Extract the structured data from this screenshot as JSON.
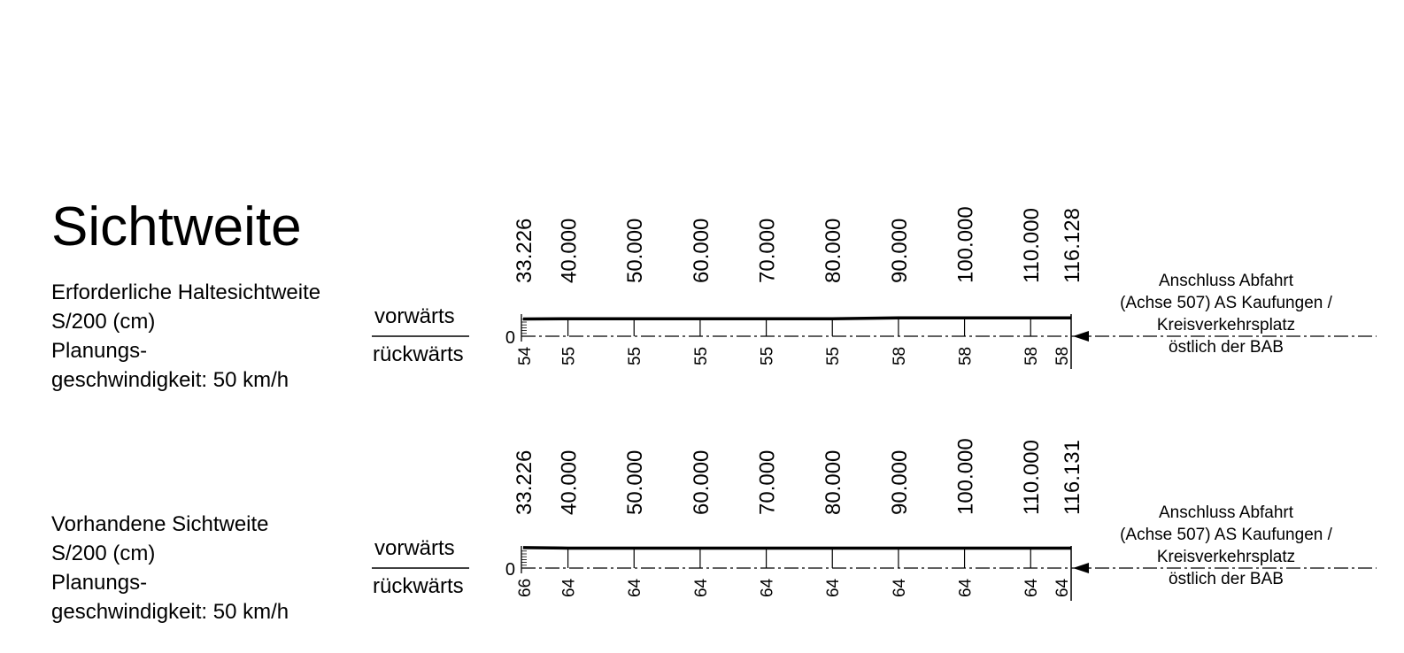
{
  "title": "Sichtweite",
  "blocks": [
    {
      "desc_lines": [
        "Erforderliche Haltesichtweite",
        "S/200 (cm)",
        "Planungs-",
        "geschwindigkeit: 50 km/h"
      ],
      "forward_label": "vorwärts",
      "backward_label": "rückwärts",
      "zero_label": "0",
      "stations": [
        "33.226",
        "40.000",
        "50.000",
        "60.000",
        "70.000",
        "80.000",
        "90.000",
        "100.000",
        "110.000",
        "116.128"
      ],
      "station_km": [
        33.226,
        40.0,
        50.0,
        60.0,
        70.0,
        80.0,
        90.0,
        100.0,
        110.0,
        116.128
      ],
      "forward_values": [
        54,
        55,
        55,
        55,
        55,
        55,
        58,
        58,
        58,
        58
      ],
      "backward_values": [
        "54",
        "55",
        "55",
        "55",
        "55",
        "55",
        "58",
        "58",
        "58",
        "58"
      ],
      "note_lines": [
        "Anschluss Abfahrt",
        "(Achse 507) AS Kaufungen /",
        "Kreisverkehrsplatz",
        "östlich der BAB"
      ]
    },
    {
      "desc_lines": [
        "Vorhandene Sichtweite",
        "S/200 (cm)",
        "Planungs-",
        "geschwindigkeit: 50 km/h"
      ],
      "forward_label": "vorwärts",
      "backward_label": "rückwärts",
      "zero_label": "0",
      "stations": [
        "33.226",
        "40.000",
        "50.000",
        "60.000",
        "70.000",
        "80.000",
        "90.000",
        "100.000",
        "110.000",
        "116.131"
      ],
      "station_km": [
        33.226,
        40.0,
        50.0,
        60.0,
        70.0,
        80.0,
        90.0,
        100.0,
        110.0,
        116.131
      ],
      "forward_values": [
        66,
        64,
        64,
        64,
        64,
        64,
        64,
        64,
        64,
        64
      ],
      "backward_values": [
        "66",
        "64",
        "64",
        "64",
        "64",
        "64",
        "64",
        "64",
        "64",
        "64"
      ],
      "note_lines": [
        "Anschluss Abfahrt",
        "(Achse 507) AS Kaufungen /",
        "Kreisverkehrsplatz",
        "östlich der BAB"
      ]
    }
  ]
}
